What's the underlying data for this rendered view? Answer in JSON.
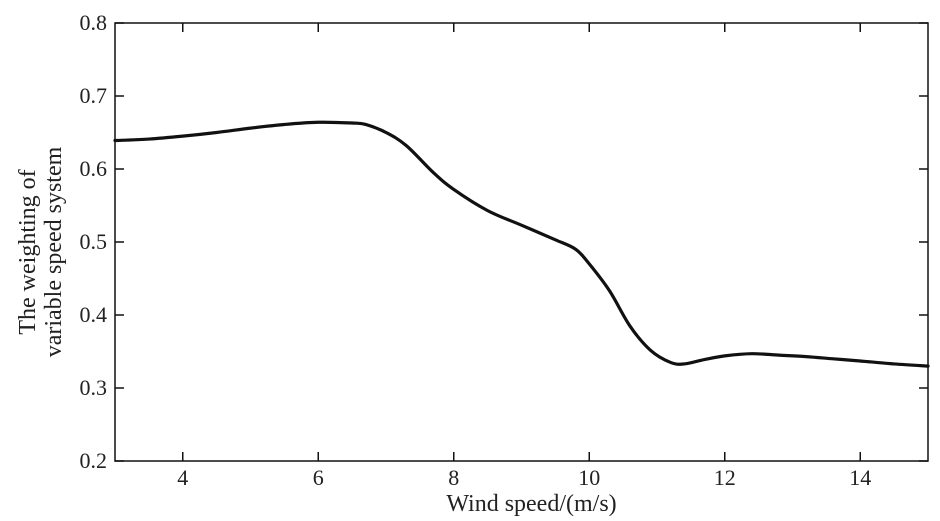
{
  "chart_data": {
    "type": "line",
    "xlabel": "Wind speed/(m/s)",
    "ylabel_lines": [
      "The weighting of",
      "variable speed system"
    ],
    "xlim": [
      3,
      15
    ],
    "ylim": [
      0.2,
      0.8
    ],
    "xticks": [
      4,
      6,
      8,
      10,
      12,
      14
    ],
    "yticks": [
      0.2,
      0.3,
      0.4,
      0.5,
      0.6,
      0.7,
      0.8
    ],
    "xtick_labels": [
      "4",
      "6",
      "8",
      "10",
      "12",
      "14"
    ],
    "ytick_labels": [
      "0.2",
      "0.3",
      "0.4",
      "0.5",
      "0.6",
      "0.7",
      "0.8"
    ],
    "grid": false,
    "series": [
      {
        "color": "#111111",
        "points": [
          [
            3.0,
            0.639
          ],
          [
            3.5,
            0.641
          ],
          [
            4.0,
            0.645
          ],
          [
            4.5,
            0.65
          ],
          [
            5.0,
            0.656
          ],
          [
            5.5,
            0.661
          ],
          [
            6.0,
            0.664
          ],
          [
            6.5,
            0.663
          ],
          [
            6.7,
            0.661
          ],
          [
            7.0,
            0.65
          ],
          [
            7.3,
            0.632
          ],
          [
            7.7,
            0.595
          ],
          [
            8.0,
            0.572
          ],
          [
            8.5,
            0.543
          ],
          [
            9.0,
            0.523
          ],
          [
            9.5,
            0.503
          ],
          [
            9.8,
            0.49
          ],
          [
            10.0,
            0.47
          ],
          [
            10.3,
            0.433
          ],
          [
            10.6,
            0.385
          ],
          [
            10.9,
            0.352
          ],
          [
            11.2,
            0.335
          ],
          [
            11.4,
            0.333
          ],
          [
            11.7,
            0.339
          ],
          [
            12.0,
            0.344
          ],
          [
            12.4,
            0.347
          ],
          [
            12.8,
            0.345
          ],
          [
            13.2,
            0.343
          ],
          [
            13.6,
            0.34
          ],
          [
            14.0,
            0.337
          ],
          [
            14.5,
            0.333
          ],
          [
            15.0,
            0.33
          ]
        ]
      }
    ]
  }
}
